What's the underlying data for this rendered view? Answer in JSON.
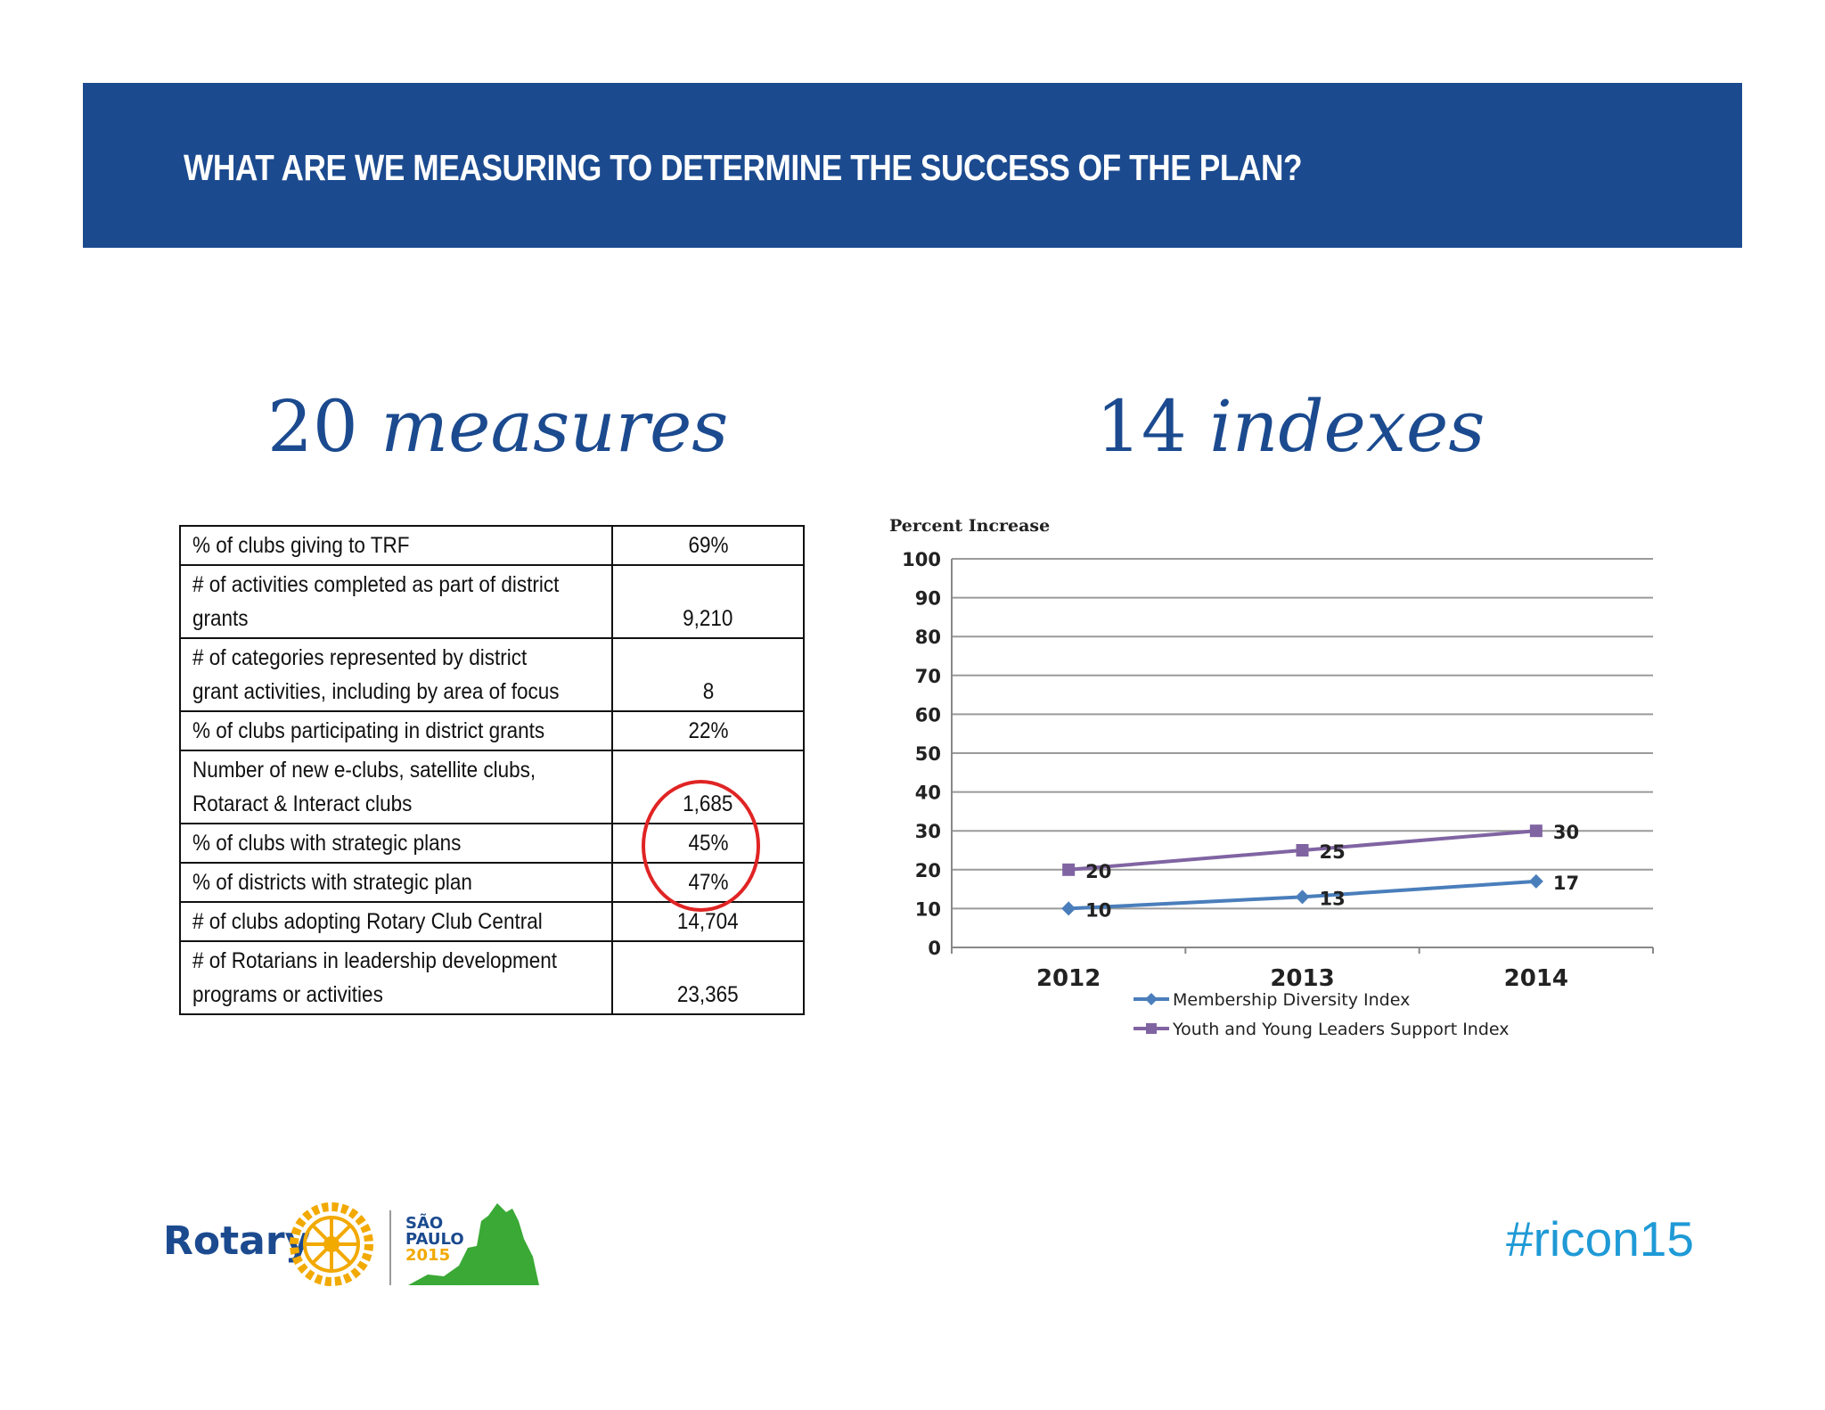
{
  "header": {
    "title": "WHAT ARE WE MEASURING TO DETERMINE THE SUCCESS OF THE PLAN?"
  },
  "left": {
    "num": "20",
    "word": "measures"
  },
  "right": {
    "num": "14",
    "word": "indexes"
  },
  "table": {
    "rows": [
      {
        "label": [
          "% of clubs giving to TRF"
        ],
        "value": "69%"
      },
      {
        "label": [
          "# of activities completed as part of district",
          "grants"
        ],
        "value": "9,210"
      },
      {
        "label": [
          "# of categories represented by district",
          "grant activities, including by area of focus"
        ],
        "value": "8"
      },
      {
        "label": [
          "% of clubs participating in district grants"
        ],
        "value": "22%"
      },
      {
        "label": [
          "Number of new e-clubs, satellite clubs,",
          "Rotaract & Interact clubs"
        ],
        "value": "1,685"
      },
      {
        "label": [
          "% of clubs with strategic plans"
        ],
        "value": "45%"
      },
      {
        "label": [
          "% of districts with strategic plan"
        ],
        "value": "47%"
      },
      {
        "label": [
          "# of clubs adopting Rotary Club Central"
        ],
        "value": "14,704"
      },
      {
        "label": [
          "# of Rotarians in leadership development",
          "programs or activities"
        ],
        "value": "23,365"
      }
    ]
  },
  "chart_data": {
    "type": "line",
    "title": "Percent Increase",
    "x": [
      "2012",
      "2013",
      "2014"
    ],
    "ylim": [
      0,
      100
    ],
    "yticks": [
      0,
      10,
      20,
      30,
      40,
      50,
      60,
      70,
      80,
      90,
      100
    ],
    "grid": true,
    "legend_position": "bottom",
    "series": [
      {
        "name": "Membership Diversity Index",
        "values": [
          10,
          13,
          17
        ],
        "color": "#4a7ebb",
        "marker": "diamond"
      },
      {
        "name": "Youth and Young Leaders Support Index",
        "values": [
          20,
          25,
          30
        ],
        "color": "#8064a2",
        "marker": "square"
      }
    ]
  },
  "footer": {
    "brand": "Rotary",
    "event_city_1": "SÃO",
    "event_city_2": "PAULO",
    "event_year": "2015",
    "hashtag": "#ricon15"
  },
  "colors": {
    "brand_blue": "#1b4a8f",
    "rotary_gold": "#f2a900",
    "hashtag_blue": "#1f9ad6",
    "circle_red": "#e02424",
    "event_green": "#3aa935"
  }
}
